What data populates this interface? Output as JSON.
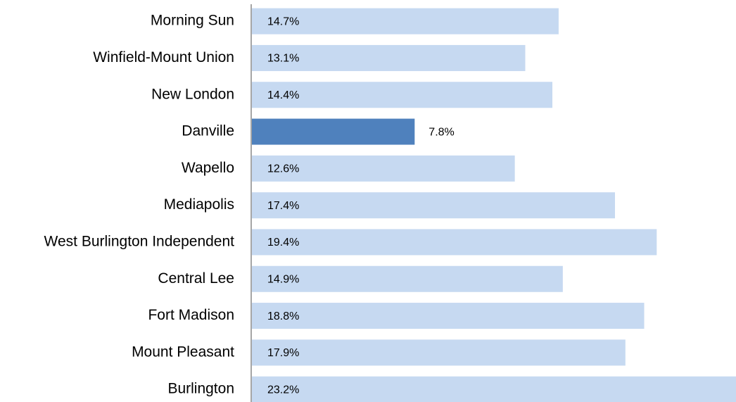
{
  "chart_data": {
    "type": "bar",
    "orientation": "horizontal",
    "categories": [
      "Morning Sun",
      "Winfield-Mount Union",
      "New London",
      "Danville",
      "Wapello",
      "Mediapolis",
      "West Burlington Independent",
      "Central Lee",
      "Fort Madison",
      "Mount Pleasant",
      "Burlington"
    ],
    "values": [
      14.7,
      13.1,
      14.4,
      7.8,
      12.6,
      17.4,
      19.4,
      14.9,
      18.8,
      17.9,
      23.2
    ],
    "value_labels": [
      "14.7%",
      "13.1%",
      "14.4%",
      "7.8%",
      "12.6%",
      "17.4%",
      "19.4%",
      "14.9%",
      "18.8%",
      "17.9%",
      "23.2%"
    ],
    "colors": [
      "#c6d9f1",
      "#c6d9f1",
      "#c6d9f1",
      "#4f81bd",
      "#c6d9f1",
      "#c6d9f1",
      "#c6d9f1",
      "#c6d9f1",
      "#c6d9f1",
      "#c6d9f1",
      "#c6d9f1"
    ]
  }
}
